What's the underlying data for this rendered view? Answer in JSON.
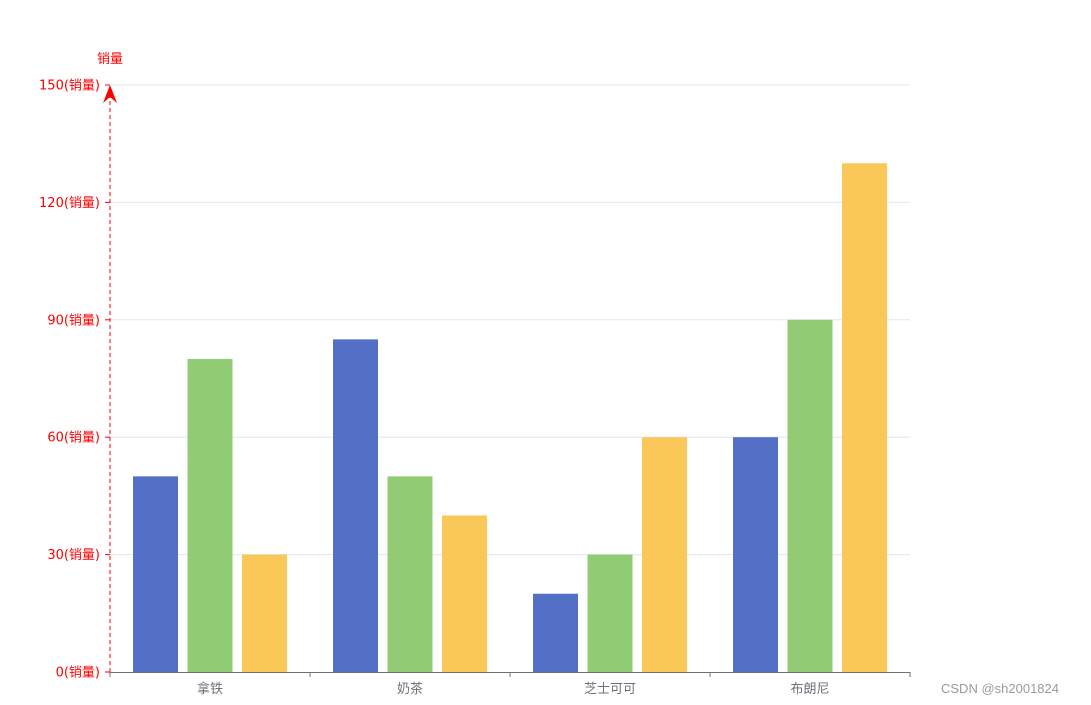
{
  "chart_data": {
    "type": "bar",
    "categories": [
      "拿铁",
      "奶茶",
      "芝士可可",
      "布朗尼"
    ],
    "series": [
      {
        "values": [
          50,
          85,
          20,
          60
        ],
        "color": "#5470c6"
      },
      {
        "values": [
          80,
          50,
          30,
          90
        ],
        "color": "#91cc75"
      },
      {
        "values": [
          30,
          40,
          60,
          130
        ],
        "color": "#fac858"
      }
    ],
    "ylabel": "销量",
    "ylim": [
      0,
      150
    ],
    "yticks": [
      0,
      30,
      60,
      90,
      120,
      150
    ],
    "ytick_suffix": "(销量)",
    "grid": true,
    "legend": "none",
    "colors": {
      "y_axis": "#ff0000",
      "x_axis": "#6e7079",
      "x_label": "#6e7079",
      "grid": "#e0e6f1"
    }
  },
  "watermark": "CSDN @sh2001824"
}
